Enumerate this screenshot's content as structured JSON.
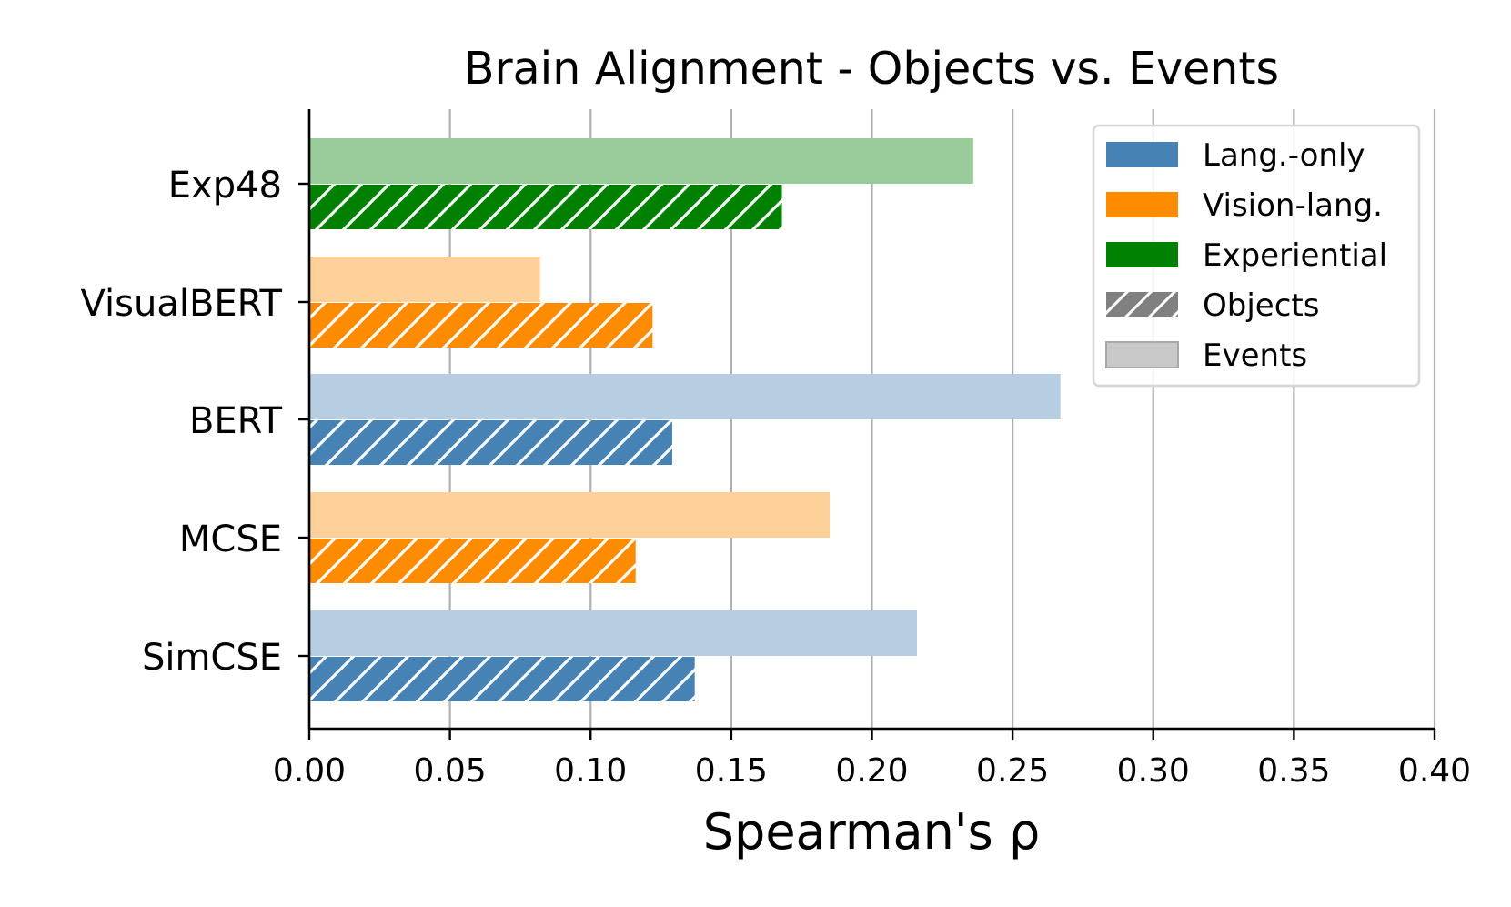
{
  "chart_data": {
    "type": "bar",
    "orientation": "horizontal",
    "title": "Brain Alignment - Objects vs. Events",
    "xlabel": "Spearman's ρ",
    "ylabel": "",
    "xlim": [
      0,
      0.4
    ],
    "xticks": [
      "0.00",
      "0.05",
      "0.10",
      "0.15",
      "0.20",
      "0.25",
      "0.30",
      "0.35",
      "0.40"
    ],
    "grid": "vertical",
    "legend_placement": "top-right",
    "categories": [
      {
        "label": "Exp48",
        "group": "Experiential",
        "events": 0.236,
        "objects": 0.168
      },
      {
        "label": "VisualBERT",
        "group": "Vision-lang.",
        "events": 0.082,
        "objects": 0.122
      },
      {
        "label": "BERT",
        "group": "Lang.-only",
        "events": 0.267,
        "objects": 0.129
      },
      {
        "label": "MCSE",
        "group": "Vision-lang.",
        "events": 0.185,
        "objects": 0.116
      },
      {
        "label": "SimCSE",
        "group": "Lang.-only",
        "events": 0.216,
        "objects": 0.137
      }
    ],
    "groups": [
      {
        "name": "Lang.-only",
        "color": "#4682b4",
        "light": "#b6cde2"
      },
      {
        "name": "Vision-lang.",
        "color": "#ff8c00",
        "light": "#ffd19a"
      },
      {
        "name": "Experiential",
        "color": "#008000",
        "light": "#9acb9a"
      }
    ],
    "legend": [
      {
        "label": "Lang.-only",
        "swatch": "solid",
        "color": "#4682b4"
      },
      {
        "label": "Vision-lang.",
        "swatch": "solid",
        "color": "#ff8c00"
      },
      {
        "label": "Experiential",
        "swatch": "solid",
        "color": "#008000"
      },
      {
        "label": "Objects",
        "swatch": "hatch",
        "color": "#808080"
      },
      {
        "label": "Events",
        "swatch": "light",
        "color": "#c8c8c8"
      }
    ]
  }
}
